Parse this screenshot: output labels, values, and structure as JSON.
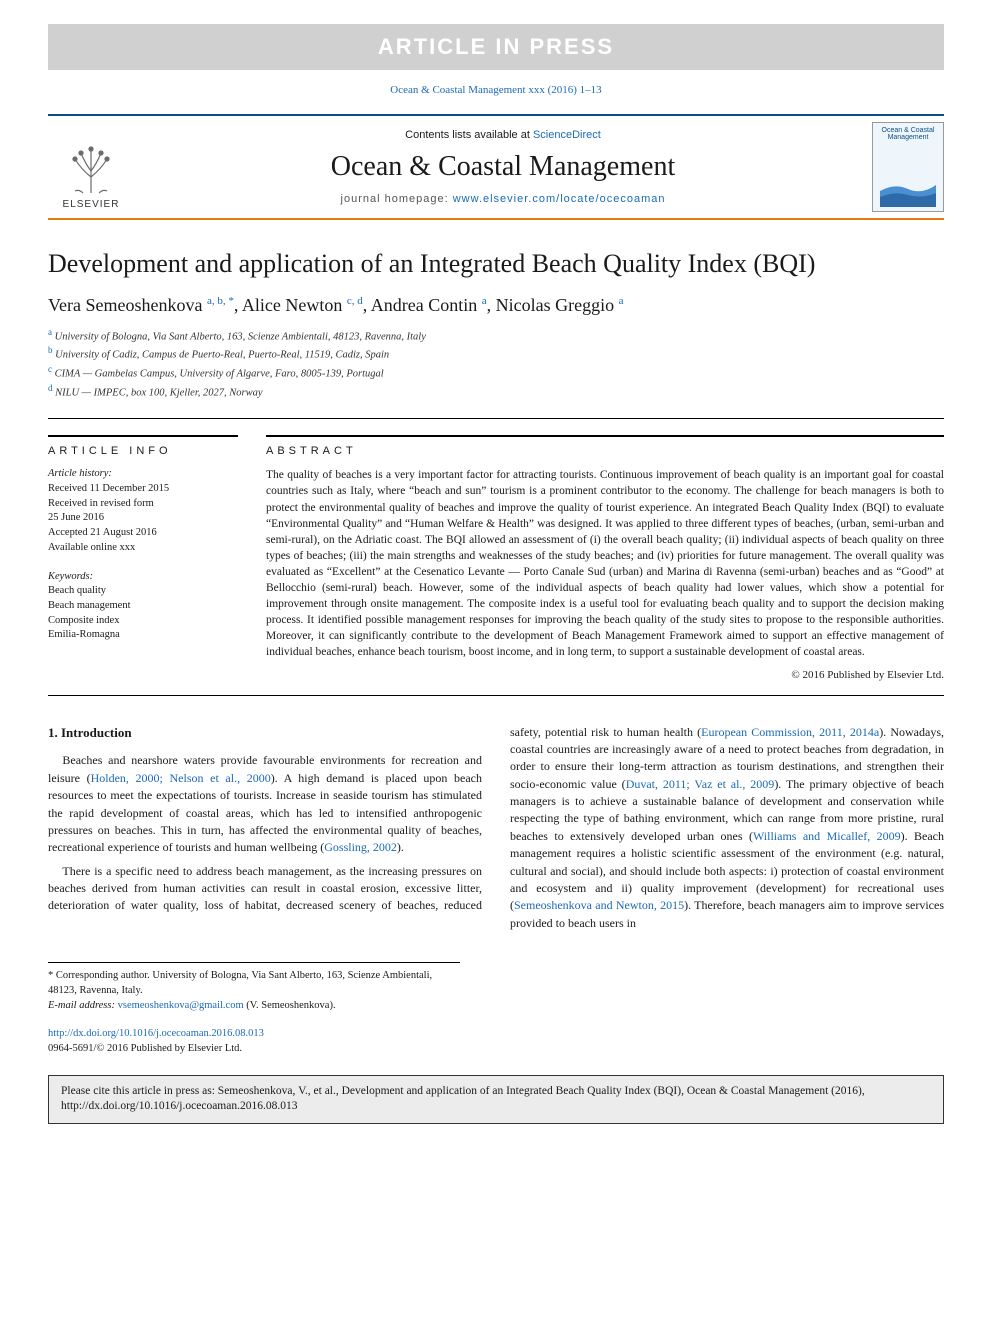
{
  "banner": "ARTICLE IN PRESS",
  "citation_top": "Ocean & Coastal Management xxx (2016) 1–13",
  "header": {
    "contents_lists": "Contents lists available at ",
    "contents_link": "ScienceDirect",
    "journal_name": "Ocean & Coastal Management",
    "homepage_label": "journal homepage: ",
    "homepage_url": "www.elsevier.com/locate/ocecoaman",
    "publisher_word": "ELSEVIER",
    "cover_title": "Ocean & Coastal Management"
  },
  "article": {
    "title": "Development and application of an Integrated Beach Quality Index (BQI)",
    "authors_html": "Vera Semeoshenkova <sup>a, b, *</sup>, Alice Newton <sup>c, d</sup>, Andrea Contin <sup>a</sup>, Nicolas Greggio <sup>a</sup>",
    "affiliations": [
      {
        "sup": "a",
        "text": "University of Bologna, Via Sant Alberto, 163, Scienze Ambientali, 48123, Ravenna, Italy"
      },
      {
        "sup": "b",
        "text": "University of Cadiz, Campus de Puerto-Real, Puerto-Real, 11519, Cadiz, Spain"
      },
      {
        "sup": "c",
        "text": "CIMA — Gambelas Campus, University of Algarve, Faro, 8005-139, Portugal"
      },
      {
        "sup": "d",
        "text": "NILU — IMPEC, box 100, Kjeller, 2027, Norway"
      }
    ]
  },
  "info": {
    "heading": "ARTICLE INFO",
    "history_label": "Article history:",
    "history": [
      "Received 11 December 2015",
      "Received in revised form",
      "25 June 2016",
      "Accepted 21 August 2016",
      "Available online xxx"
    ],
    "keywords_label": "Keywords:",
    "keywords": [
      "Beach quality",
      "Beach management",
      "Composite index",
      "Emilia-Romagna"
    ]
  },
  "abstract": {
    "heading": "ABSTRACT",
    "text": "The quality of beaches is a very important factor for attracting tourists. Continuous improvement of beach quality is an important goal for coastal countries such as Italy, where “beach and sun” tourism is a prominent contributor to the economy. The challenge for beach managers is both to protect the environmental quality of beaches and improve the quality of tourist experience. An integrated Beach Quality Index (BQI) to evaluate “Environmental Quality” and “Human Welfare & Health” was designed. It was applied to three different types of beaches, (urban, semi-urban and semi-rural), on the Adriatic coast. The BQI allowed an assessment of (i) the overall beach quality; (ii) individual aspects of beach quality on three types of beaches; (iii) the main strengths and weaknesses of the study beaches; and (iv) priorities for future management. The overall quality was evaluated as “Excellent” at the Cesenatico Levante — Porto Canale Sud (urban) and Marina di Ravenna (semi-urban) beaches and as “Good” at Bellocchio (semi-rural) beach. However, some of the individual aspects of beach quality had lower values, which show a potential for improvement through onsite management. The composite index is a useful tool for evaluating beach quality and to support the decision making process. It identified possible management responses for improving the beach quality of the study sites to propose to the responsible authorities. Moreover, it can significantly contribute to the development of Beach Management Framework aimed to support an effective management of individual beaches, enhance beach tourism, boost income, and in long term, to support a sustainable development of coastal areas.",
    "copyright": "© 2016 Published by Elsevier Ltd."
  },
  "body": {
    "h1": "1. Introduction",
    "p1_a": "Beaches and nearshore waters provide favourable environments for recreation and leisure (",
    "p1_ref1": "Holden, 2000; Nelson et al., 2000",
    "p1_b": "). A high demand is placed upon beach resources to meet the expectations of tourists. Increase in seaside tourism has stimulated the rapid development of coastal areas, which has led to intensified anthropogenic pressures on beaches. This in turn, has affected the environmental quality of beaches, recreational experience of tourists and human wellbeing (",
    "p1_ref2": "Gossling, 2002",
    "p1_c": ").",
    "p2_a": "There is a specific need to address beach management, as the increasing pressures on beaches derived from human activities can result in coastal erosion, excessive litter, deterioration of water quality, loss of habitat, decreased scenery of beaches, reduced safety, potential risk to human health (",
    "p2_ref1": "European Commission, 2011, 2014a",
    "p2_b": "). Nowadays, coastal countries are increasingly aware of a need to protect beaches from degradation, in order to ensure their long-term attraction as tourism destinations, and strengthen their socio-economic value (",
    "p2_ref2": "Duvat, 2011; Vaz et al., 2009",
    "p2_c": "). The primary objective of beach managers is to achieve a sustainable balance of development and conservation while respecting the type of bathing environment, which can range from more pristine, rural beaches to extensively developed urban ones (",
    "p2_ref3": "Williams and Micallef, 2009",
    "p2_d": "). Beach management requires a holistic scientific assessment of the environment (e.g. natural, cultural and social), and should include both aspects: i) protection of coastal environment and ecosystem and ii) quality improvement (development) for recreational uses (",
    "p2_ref4": "Semeoshenkova and Newton, 2015",
    "p2_e": "). Therefore, beach managers aim to improve services provided to beach users in"
  },
  "footnotes": {
    "corr": "* Corresponding author. University of Bologna, Via Sant Alberto, 163, Scienze Ambientali, 48123, Ravenna, Italy.",
    "email_label": "E-mail address: ",
    "email": "vsemeoshenkova@gmail.com",
    "email_tail": " (V. Semeoshenkova)."
  },
  "doi": {
    "url": "http://dx.doi.org/10.1016/j.ocecoaman.2016.08.013",
    "issn_line": "0964-5691/© 2016 Published by Elsevier Ltd."
  },
  "cite_box": "Please cite this article in press as: Semeoshenkova, V., et al., Development and application of an Integrated Beach Quality Index (BQI), Ocean & Coastal Management (2016), http://dx.doi.org/10.1016/j.ocecoaman.2016.08.013",
  "colors": {
    "link": "#1b6ab5",
    "top_rule": "#0b4e8b",
    "bottom_rule": "#e67a18",
    "banner_bg": "#d0d0d0"
  }
}
